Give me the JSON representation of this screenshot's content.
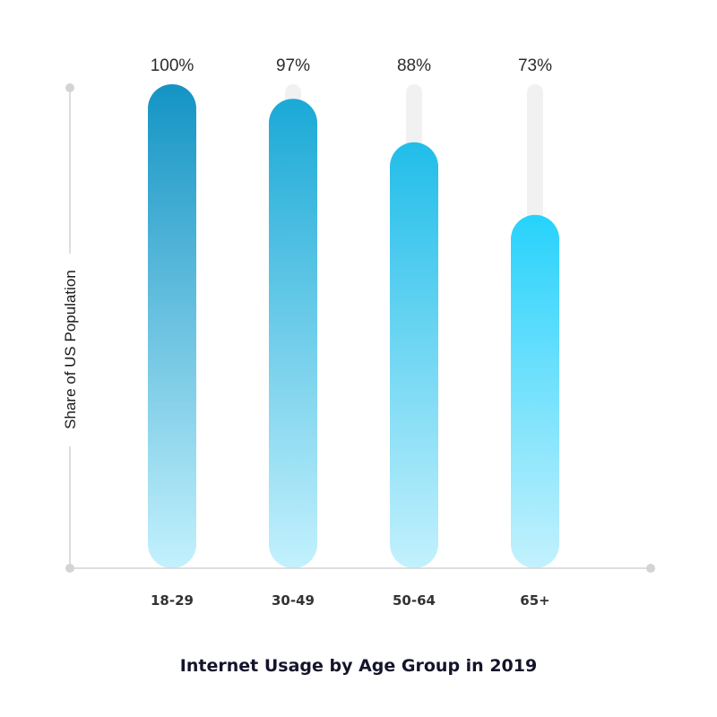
{
  "chart_data": {
    "type": "bar",
    "title": "Internet Usage by Age Group in 2019",
    "xlabel": "",
    "ylabel": "Share of US Population",
    "categories": [
      "18-29",
      "30-49",
      "50-64",
      "65+"
    ],
    "values": [
      100,
      97,
      88,
      73
    ],
    "value_labels": [
      "100%",
      "97%",
      "88%",
      "73%"
    ],
    "ylim": [
      0,
      100
    ],
    "unit": "%",
    "grid": false,
    "legend": "none",
    "colors": {
      "bar_top_dark": "#1494c4",
      "bar_top_bright": "#27d2fb",
      "bar_bottom": "#c3f1fd",
      "track": "#f1f1f1",
      "axis": "#d4d4d4"
    }
  }
}
